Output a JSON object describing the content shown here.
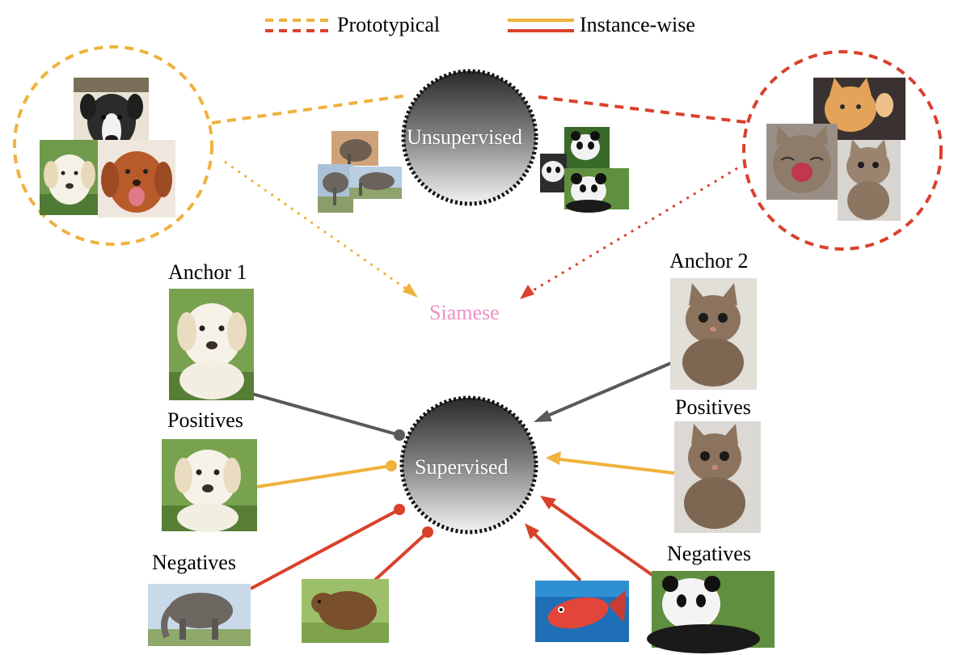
{
  "legend": {
    "prototypical": "Prototypical",
    "instance_wise": "Instance-wise"
  },
  "hubs": {
    "unsupervised": "Unsupervised",
    "supervised": "Supervised",
    "siamese": "Siamese"
  },
  "labels": {
    "anchor1": "Anchor 1",
    "anchor2": "Anchor 2",
    "positives_left": "Positives",
    "positives_right": "Positives",
    "negatives_left": "Negatives",
    "negatives_right": "Negatives"
  },
  "colors": {
    "prototypical_orange": "#efb23c",
    "prototypical_red": "#d9412b",
    "instance_orange": "#efb23c",
    "instance_red": "#d9412b",
    "anchor_line": "#595959",
    "siamese_text": "#ef8fc4"
  },
  "images": {
    "dogs_cluster": [
      "puppy-black-white",
      "labrador-puppy",
      "retriever-puppy"
    ],
    "cats_cluster": [
      "kitten-waving",
      "kitten-yawning",
      "tabby-kitten"
    ],
    "elephants": [
      "elephant-1",
      "elephant-2",
      "elephant-3"
    ],
    "pandas": [
      "panda-1",
      "panda-2",
      "panda-3"
    ],
    "anchor1": "labrador-puppy",
    "anchor2": "tabby-kitten",
    "positive_left": "labrador-puppy",
    "positive_right": "tabby-kitten",
    "negatives": [
      "elephant",
      "bear",
      "fish",
      "panda"
    ]
  }
}
